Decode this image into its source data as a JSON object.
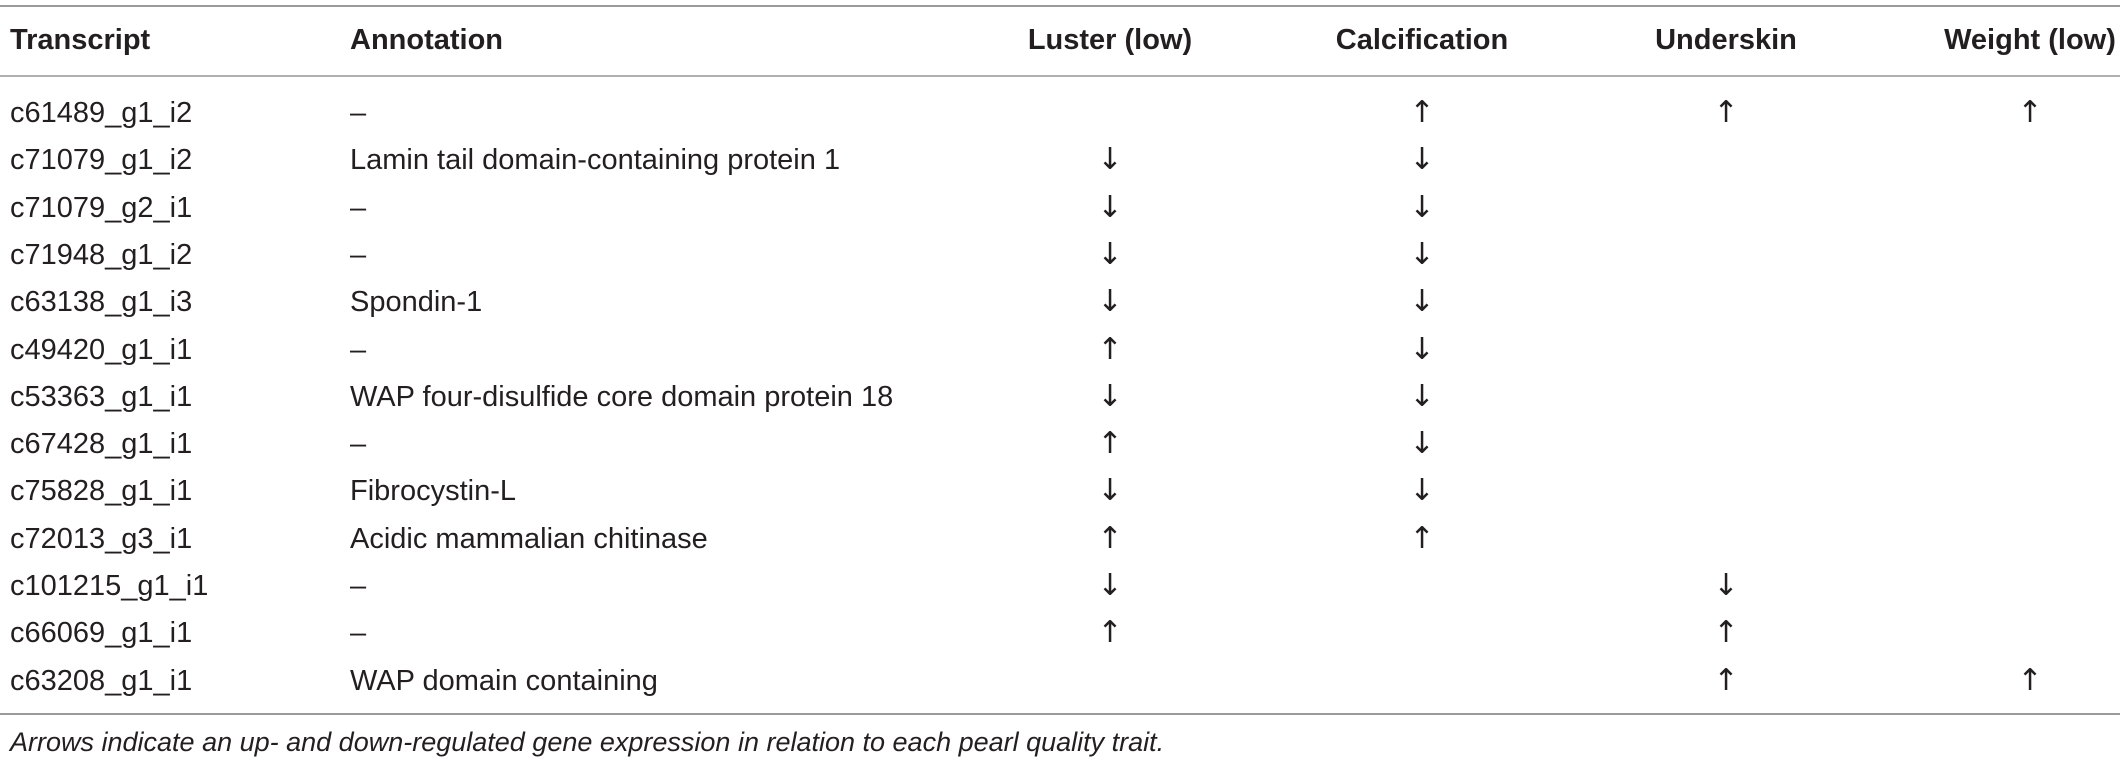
{
  "table": {
    "headers": {
      "transcript": "Transcript",
      "annotation": "Annotation",
      "luster": "Luster (low)",
      "calcification": "Calcification",
      "underskin": "Underskin",
      "weight": "Weight (low)"
    },
    "rows": [
      {
        "transcript": "c61489_g1_i2",
        "annotation": "–",
        "luster": "",
        "calcification": "↑",
        "underskin": "↑",
        "weight": "↑"
      },
      {
        "transcript": "c71079_g1_i2",
        "annotation": "Lamin tail domain-containing protein 1",
        "luster": "↓",
        "calcification": "↓",
        "underskin": "",
        "weight": ""
      },
      {
        "transcript": "c71079_g2_i1",
        "annotation": "–",
        "luster": "↓",
        "calcification": "↓",
        "underskin": "",
        "weight": ""
      },
      {
        "transcript": "c71948_g1_i2",
        "annotation": "–",
        "luster": "↓",
        "calcification": "↓",
        "underskin": "",
        "weight": ""
      },
      {
        "transcript": "c63138_g1_i3",
        "annotation": "Spondin-1",
        "luster": "↓",
        "calcification": "↓",
        "underskin": "",
        "weight": ""
      },
      {
        "transcript": "c49420_g1_i1",
        "annotation": "–",
        "luster": "↑",
        "calcification": "↓",
        "underskin": "",
        "weight": ""
      },
      {
        "transcript": "c53363_g1_i1",
        "annotation": "WAP four-disulfide core domain protein 18",
        "luster": "↓",
        "calcification": "↓",
        "underskin": "",
        "weight": ""
      },
      {
        "transcript": "c67428_g1_i1",
        "annotation": "–",
        "luster": "↑",
        "calcification": "↓",
        "underskin": "",
        "weight": ""
      },
      {
        "transcript": "c75828_g1_i1",
        "annotation": "Fibrocystin-L",
        "luster": "↓",
        "calcification": "↓",
        "underskin": "",
        "weight": ""
      },
      {
        "transcript": "c72013_g3_i1",
        "annotation": "Acidic mammalian chitinase",
        "luster": "↑",
        "calcification": "↑",
        "underskin": "",
        "weight": ""
      },
      {
        "transcript": "c101215_g1_i1",
        "annotation": "–",
        "luster": "↓",
        "calcification": "",
        "underskin": "↓",
        "weight": ""
      },
      {
        "transcript": "c66069_g1_i1",
        "annotation": "–",
        "luster": "↑",
        "calcification": "",
        "underskin": "↑",
        "weight": ""
      },
      {
        "transcript": "c63208_g1_i1",
        "annotation": "WAP domain containing",
        "luster": "",
        "calcification": "",
        "underskin": "↑",
        "weight": "↑"
      }
    ]
  },
  "footnote": "Arrows indicate an up- and down-regulated gene expression in relation to each pearl quality trait."
}
